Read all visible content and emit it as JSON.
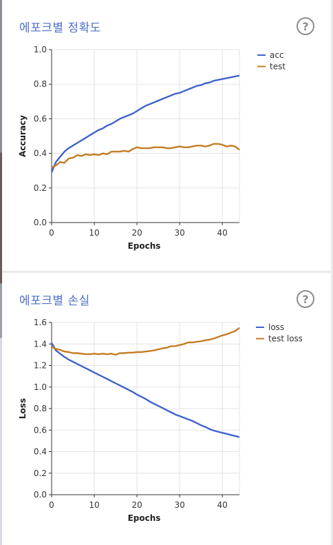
{
  "cards": [
    {
      "title": "에포크별 정확도",
      "help_glyph": "?"
    },
    {
      "title": "에포크별 손실",
      "help_glyph": "?"
    }
  ],
  "colors": {
    "series1": "#3f63cc",
    "series2": "#c57c23",
    "grid": "#e3e3e3"
  },
  "chart_data": [
    {
      "type": "line",
      "title": "에포크별 정확도",
      "xlabel": "Epochs",
      "ylabel": "Accuracy",
      "xlim": [
        0,
        44
      ],
      "ylim": [
        0,
        1.0
      ],
      "xticks": [
        0,
        10,
        20,
        30,
        40
      ],
      "xtick_labels": [
        "0",
        "10",
        "20",
        "30",
        "40"
      ],
      "yticks": [
        0,
        0.2,
        0.4,
        0.6,
        0.8,
        1.0
      ],
      "ytick_labels": [
        "0.0",
        "0.2",
        "0.4",
        "0.6",
        "0.8",
        "1.0"
      ],
      "grid": true,
      "legend_position": "right",
      "series": [
        {
          "name": "acc",
          "x": [
            0,
            1,
            2,
            3,
            4,
            5,
            6,
            7,
            8,
            9,
            10,
            11,
            12,
            13,
            14,
            15,
            16,
            17,
            18,
            19,
            20,
            21,
            22,
            23,
            24,
            25,
            26,
            27,
            28,
            29,
            30,
            31,
            32,
            33,
            34,
            35,
            36,
            37,
            38,
            39,
            40,
            41,
            42,
            43,
            44
          ],
          "y": [
            0.29,
            0.35,
            0.38,
            0.41,
            0.43,
            0.445,
            0.46,
            0.475,
            0.49,
            0.505,
            0.52,
            0.535,
            0.545,
            0.56,
            0.57,
            0.585,
            0.6,
            0.61,
            0.62,
            0.63,
            0.645,
            0.66,
            0.675,
            0.685,
            0.695,
            0.705,
            0.715,
            0.725,
            0.735,
            0.745,
            0.75,
            0.76,
            0.77,
            0.78,
            0.79,
            0.795,
            0.805,
            0.81,
            0.82,
            0.825,
            0.83,
            0.835,
            0.84,
            0.845,
            0.85
          ]
        },
        {
          "name": "test",
          "x": [
            0,
            1,
            2,
            3,
            4,
            5,
            6,
            7,
            8,
            9,
            10,
            11,
            12,
            13,
            14,
            15,
            16,
            17,
            18,
            19,
            20,
            21,
            22,
            23,
            24,
            25,
            26,
            27,
            28,
            29,
            30,
            31,
            32,
            33,
            34,
            35,
            36,
            37,
            38,
            39,
            40,
            41,
            42,
            43,
            44
          ],
          "y": [
            0.32,
            0.33,
            0.35,
            0.345,
            0.37,
            0.375,
            0.39,
            0.385,
            0.395,
            0.39,
            0.395,
            0.39,
            0.4,
            0.395,
            0.41,
            0.41,
            0.41,
            0.415,
            0.41,
            0.425,
            0.435,
            0.43,
            0.43,
            0.43,
            0.435,
            0.435,
            0.435,
            0.43,
            0.43,
            0.435,
            0.44,
            0.435,
            0.435,
            0.44,
            0.445,
            0.445,
            0.44,
            0.445,
            0.455,
            0.455,
            0.45,
            0.44,
            0.445,
            0.44,
            0.42
          ]
        }
      ]
    },
    {
      "type": "line",
      "title": "에포크별 손실",
      "xlabel": "Epochs",
      "ylabel": "Loss",
      "xlim": [
        0,
        44
      ],
      "ylim": [
        0,
        1.6
      ],
      "xticks": [
        0,
        10,
        20,
        30,
        40
      ],
      "xtick_labels": [
        "0",
        "10",
        "20",
        "30",
        "40"
      ],
      "yticks": [
        0,
        0.2,
        0.4,
        0.6,
        0.8,
        1.0,
        1.2,
        1.4,
        1.6
      ],
      "ytick_labels": [
        "0.0",
        "0.2",
        "0.4",
        "0.6",
        "0.8",
        "1.0",
        "1.2",
        "1.4",
        "1.6"
      ],
      "grid": true,
      "legend_position": "right",
      "series": [
        {
          "name": "loss",
          "x": [
            0,
            1,
            2,
            3,
            4,
            5,
            6,
            7,
            8,
            9,
            10,
            11,
            12,
            13,
            14,
            15,
            16,
            17,
            18,
            19,
            20,
            21,
            22,
            23,
            24,
            25,
            26,
            27,
            28,
            29,
            30,
            31,
            32,
            33,
            34,
            35,
            36,
            37,
            38,
            39,
            40,
            41,
            42,
            43,
            44
          ],
          "y": [
            1.41,
            1.34,
            1.31,
            1.28,
            1.255,
            1.235,
            1.215,
            1.195,
            1.175,
            1.155,
            1.135,
            1.115,
            1.095,
            1.075,
            1.055,
            1.035,
            1.015,
            0.995,
            0.975,
            0.955,
            0.93,
            0.91,
            0.89,
            0.865,
            0.845,
            0.825,
            0.805,
            0.785,
            0.765,
            0.745,
            0.73,
            0.715,
            0.7,
            0.685,
            0.665,
            0.645,
            0.63,
            0.61,
            0.595,
            0.585,
            0.575,
            0.565,
            0.555,
            0.545,
            0.535
          ]
        },
        {
          "name": "test loss",
          "x": [
            0,
            1,
            2,
            3,
            4,
            5,
            6,
            7,
            8,
            9,
            10,
            11,
            12,
            13,
            14,
            15,
            16,
            17,
            18,
            19,
            20,
            21,
            22,
            23,
            24,
            25,
            26,
            27,
            28,
            29,
            30,
            31,
            32,
            33,
            34,
            35,
            36,
            37,
            38,
            39,
            40,
            41,
            42,
            43,
            44
          ],
          "y": [
            1.37,
            1.355,
            1.345,
            1.33,
            1.325,
            1.315,
            1.315,
            1.31,
            1.305,
            1.305,
            1.31,
            1.305,
            1.31,
            1.305,
            1.31,
            1.3,
            1.315,
            1.315,
            1.32,
            1.32,
            1.325,
            1.325,
            1.33,
            1.335,
            1.34,
            1.35,
            1.36,
            1.365,
            1.38,
            1.38,
            1.39,
            1.4,
            1.415,
            1.415,
            1.42,
            1.425,
            1.435,
            1.44,
            1.45,
            1.465,
            1.48,
            1.49,
            1.505,
            1.52,
            1.55
          ]
        }
      ]
    }
  ]
}
